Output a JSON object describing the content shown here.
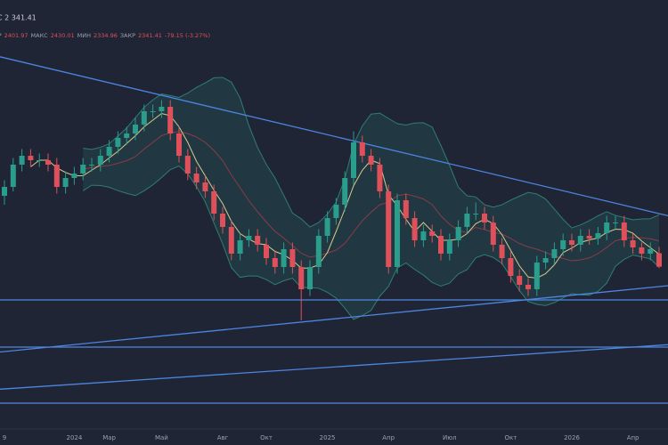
{
  "chart_data": {
    "type": "candlestick",
    "title": "С 2 341.41",
    "ohlc_labels": [
      "ОТКР",
      "МАКС",
      "МИН",
      "ЗАКР"
    ],
    "change": "-79.15 (-3.27%)",
    "categories": [
      "9",
      null,
      null,
      null,
      null,
      null,
      null,
      null,
      "2024",
      null,
      null,
      null,
      "Мар",
      null,
      null,
      null,
      null,
      null,
      "Май",
      null,
      null,
      null,
      null,
      null,
      null,
      "Авг",
      null,
      null,
      null,
      null,
      "Окт",
      null,
      null,
      null,
      null,
      null,
      null,
      "2025",
      null,
      null,
      null,
      null,
      null,
      null,
      "Апр",
      null,
      null,
      null,
      null,
      null,
      null,
      "Июл",
      null,
      null,
      null,
      null,
      null,
      null,
      "Окт",
      null,
      null,
      null,
      null,
      null,
      null,
      "2026",
      null,
      null,
      null,
      null,
      null,
      null,
      "Апр",
      null,
      null,
      null
    ],
    "ohlc": [
      [
        2660,
        2730,
        2620,
        2700
      ],
      [
        2700,
        2830,
        2680,
        2800
      ],
      [
        2800,
        2870,
        2770,
        2840
      ],
      [
        2840,
        2870,
        2790,
        2820
      ],
      [
        2820,
        2850,
        2790,
        2820
      ],
      [
        2820,
        2850,
        2770,
        2800
      ],
      [
        2800,
        2830,
        2670,
        2700
      ],
      [
        2700,
        2770,
        2670,
        2740
      ],
      [
        2740,
        2790,
        2710,
        2760
      ],
      [
        2760,
        2830,
        2730,
        2800
      ],
      [
        2800,
        2830,
        2770,
        2800
      ],
      [
        2800,
        2870,
        2770,
        2840
      ],
      [
        2840,
        2910,
        2810,
        2880
      ],
      [
        2880,
        2950,
        2850,
        2920
      ],
      [
        2920,
        2970,
        2890,
        2940
      ],
      [
        2940,
        3010,
        2910,
        2980
      ],
      [
        2980,
        3070,
        2950,
        3040
      ],
      [
        3040,
        3070,
        3010,
        3040
      ],
      [
        3040,
        3090,
        3010,
        3060
      ],
      [
        3060,
        3090,
        2910,
        2940
      ],
      [
        2940,
        2970,
        2810,
        2840
      ],
      [
        2840,
        2870,
        2730,
        2760
      ],
      [
        2760,
        2790,
        2690,
        2720
      ],
      [
        2720,
        2750,
        2650,
        2680
      ],
      [
        2680,
        2710,
        2550,
        2580
      ],
      [
        2580,
        2610,
        2490,
        2520
      ],
      [
        2520,
        2550,
        2370,
        2400
      ],
      [
        2400,
        2490,
        2370,
        2460
      ],
      [
        2460,
        2510,
        2430,
        2480
      ],
      [
        2480,
        2510,
        2410,
        2440
      ],
      [
        2440,
        2470,
        2350,
        2380
      ],
      [
        2380,
        2410,
        2310,
        2340
      ],
      [
        2340,
        2450,
        2310,
        2420
      ],
      [
        2420,
        2450,
        2310,
        2340
      ],
      [
        2340,
        2370,
        2100,
        2240
      ],
      [
        2240,
        2370,
        2210,
        2340
      ],
      [
        2340,
        2510,
        2310,
        2480
      ],
      [
        2480,
        2590,
        2450,
        2560
      ],
      [
        2560,
        2650,
        2530,
        2620
      ],
      [
        2620,
        2770,
        2590,
        2740
      ],
      [
        2740,
        2950,
        2710,
        2900
      ],
      [
        2900,
        2930,
        2810,
        2840
      ],
      [
        2840,
        2870,
        2770,
        2800
      ],
      [
        2800,
        2830,
        2650,
        2680
      ],
      [
        2680,
        2710,
        2310,
        2340
      ],
      [
        2340,
        2670,
        2310,
        2640
      ],
      [
        2640,
        2670,
        2530,
        2560
      ],
      [
        2560,
        2590,
        2430,
        2460
      ],
      [
        2460,
        2530,
        2430,
        2500
      ],
      [
        2500,
        2530,
        2450,
        2480
      ],
      [
        2480,
        2510,
        2370,
        2400
      ],
      [
        2400,
        2490,
        2370,
        2460
      ],
      [
        2460,
        2550,
        2430,
        2520
      ],
      [
        2520,
        2610,
        2490,
        2580
      ],
      [
        2580,
        2630,
        2550,
        2580
      ],
      [
        2580,
        2610,
        2510,
        2540
      ],
      [
        2540,
        2570,
        2410,
        2440
      ],
      [
        2440,
        2470,
        2350,
        2380
      ],
      [
        2380,
        2410,
        2270,
        2300
      ],
      [
        2300,
        2330,
        2230,
        2260
      ],
      [
        2260,
        2290,
        2210,
        2240
      ],
      [
        2240,
        2390,
        2210,
        2360
      ],
      [
        2360,
        2410,
        2330,
        2380
      ],
      [
        2380,
        2450,
        2350,
        2420
      ],
      [
        2420,
        2490,
        2390,
        2460
      ],
      [
        2460,
        2490,
        2410,
        2440
      ],
      [
        2440,
        2510,
        2410,
        2480
      ],
      [
        2480,
        2510,
        2440,
        2468
      ],
      [
        2468,
        2520,
        2440,
        2492
      ],
      [
        2492,
        2570,
        2460,
        2540
      ],
      [
        2540,
        2570,
        2510,
        2540
      ],
      [
        2540,
        2570,
        2430,
        2460
      ],
      [
        2460,
        2490,
        2400,
        2428
      ],
      [
        2428,
        2450,
        2370,
        2400
      ],
      [
        2400,
        2450,
        2370,
        2420.56
      ],
      [
        2401.97,
        2430.01,
        2334.96,
        2341.41
      ]
    ],
    "up_color": "#2a9d8c",
    "down_color": "#e0505a",
    "trendlines": [
      [
        3280,
        2580
      ],
      [
        1960,
        2252
      ],
      [
        1792,
        1988
      ]
    ],
    "levels": [
      2192,
      1980,
      1728
    ],
    "line_color": "#4d86e0",
    "ylim": [
      1620,
      3320
    ]
  }
}
